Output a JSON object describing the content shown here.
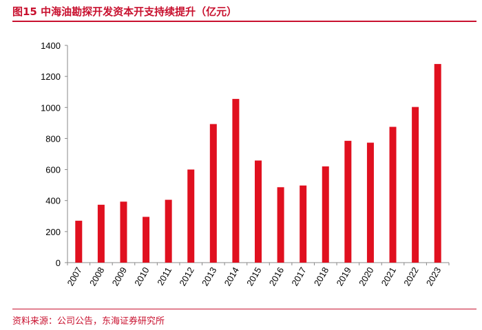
{
  "header": {
    "title": "图15  中海油勘探开发资本开支持续提升（亿元）"
  },
  "footer": {
    "source": "资料来源：公司公告，东海证券研究所"
  },
  "colors": {
    "accent": "#c8102e",
    "bar": "#e0101f",
    "axis": "#888888"
  },
  "chart_data": {
    "type": "bar",
    "title": "中海油勘探开发资本开支持续提升（亿元）",
    "xlabel": "",
    "ylabel": "",
    "categories": [
      "2007",
      "2008",
      "2009",
      "2010",
      "2011",
      "2012",
      "2013",
      "2014",
      "2015",
      "2016",
      "2017",
      "2018",
      "2019",
      "2020",
      "2021",
      "2022",
      "2023"
    ],
    "values": [
      270,
      373,
      393,
      295,
      405,
      600,
      893,
      1055,
      658,
      486,
      497,
      620,
      785,
      773,
      875,
      1003,
      1280
    ],
    "ylim": [
      0,
      1400
    ],
    "yticks": [
      0,
      200,
      400,
      600,
      800,
      1000,
      1200,
      1400
    ],
    "grid": false,
    "legend": "none"
  }
}
